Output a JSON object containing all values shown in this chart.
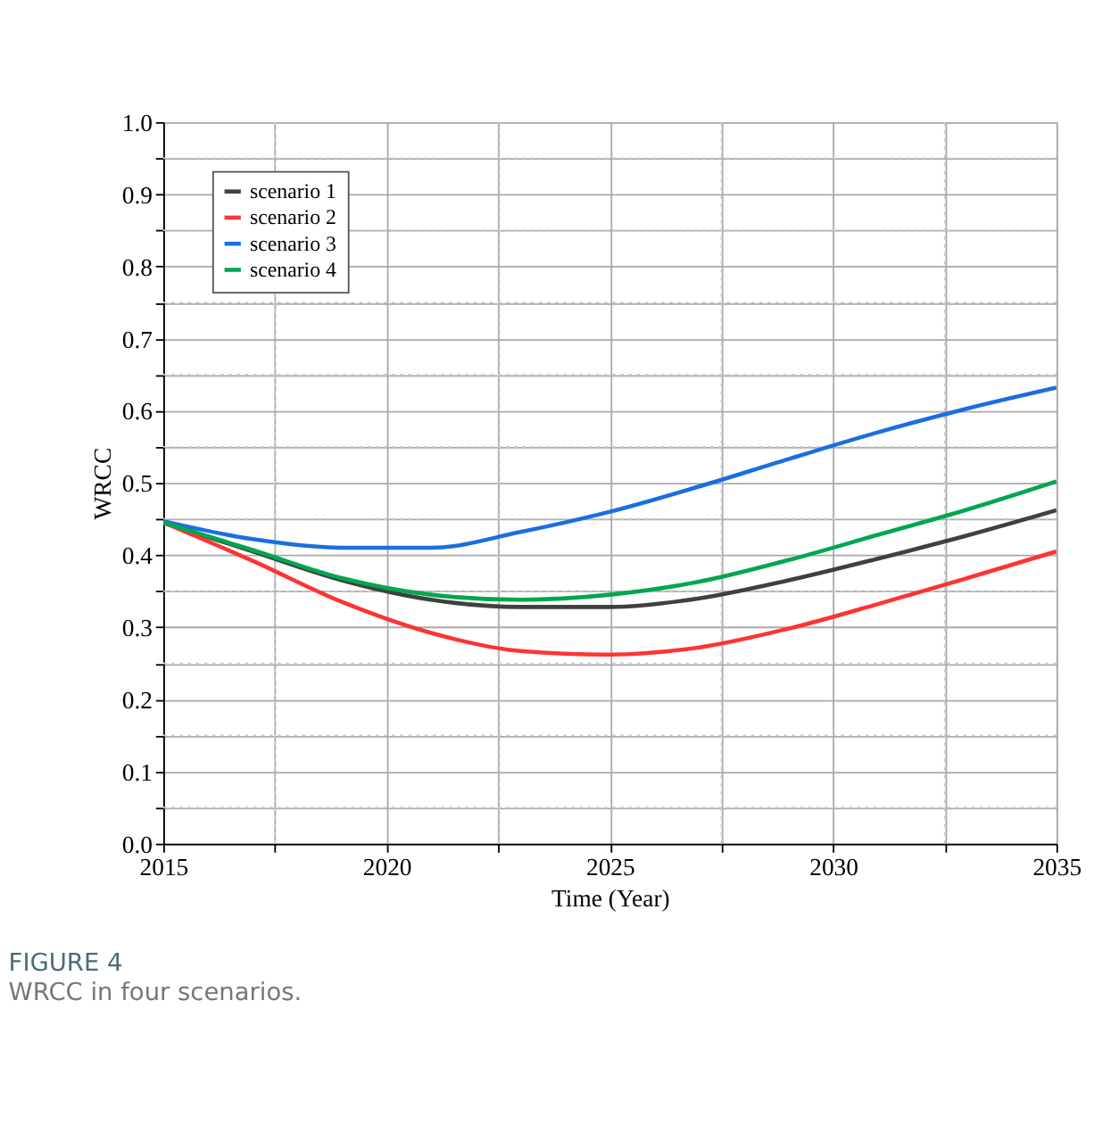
{
  "chart_data": {
    "type": "line",
    "xlabel": "Time (Year)",
    "ylabel": "WRCC",
    "x": [
      2015,
      2017,
      2019,
      2021,
      2023,
      2025,
      2027,
      2029,
      2031,
      2033,
      2035
    ],
    "series": [
      {
        "name": "scenario 1",
        "color": "#404040",
        "values": [
          0.445,
          0.405,
          0.365,
          0.338,
          0.328,
          0.328,
          0.34,
          0.365,
          0.395,
          0.427,
          0.462
        ]
      },
      {
        "name": "scenario 2",
        "color": "#ff3333",
        "values": [
          0.445,
          0.392,
          0.335,
          0.292,
          0.267,
          0.262,
          0.272,
          0.298,
          0.332,
          0.368,
          0.405
        ]
      },
      {
        "name": "scenario 3",
        "color": "#1a6fe0",
        "values": [
          0.447,
          0.422,
          0.41,
          0.41,
          0.432,
          0.46,
          0.495,
          0.533,
          0.57,
          0.603,
          0.632
        ]
      },
      {
        "name": "scenario 4",
        "color": "#00a651",
        "values": [
          0.445,
          0.407,
          0.368,
          0.345,
          0.338,
          0.345,
          0.363,
          0.393,
          0.428,
          0.463,
          0.502
        ]
      }
    ],
    "xlim": [
      2015,
      2035
    ],
    "xticks": [
      2015,
      2020,
      2025,
      2030,
      2035,
      {
        "value": 2017.5,
        "label": null
      },
      {
        "value": 2022.5,
        "label": null
      },
      {
        "value": 2027.5,
        "label": null
      },
      {
        "value": 2032.5,
        "label": null
      }
    ],
    "ylim": [
      0,
      1
    ],
    "yticks": [
      {
        "value": 0,
        "label": "0.0"
      },
      0.1,
      0.2,
      0.3,
      0.4,
      0.5,
      0.6,
      0.7,
      0.8,
      0.9,
      {
        "value": 1,
        "label": "1.0"
      },
      {
        "value": 0.05,
        "label": null
      },
      {
        "value": 0.15,
        "label": null
      },
      {
        "value": 0.25,
        "label": null
      },
      {
        "value": 0.35,
        "label": null
      },
      {
        "value": 0.45,
        "label": null
      },
      {
        "value": 0.55,
        "label": null
      },
      {
        "value": 0.65,
        "label": null
      },
      {
        "value": 0.75,
        "label": null
      },
      {
        "value": 0.85,
        "label": null
      },
      {
        "value": 0.95,
        "label": null
      }
    ],
    "grid": true,
    "legend": "top left",
    "line_style": "solid",
    "annotations": [
      "FIGURE 4",
      "WRCC in four scenarios."
    ]
  }
}
